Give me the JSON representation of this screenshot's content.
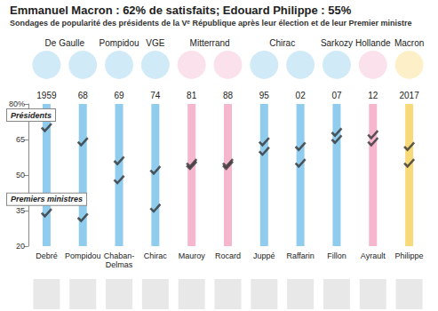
{
  "chart_data": {
    "type": "scatter",
    "title": "Emmanuel Macron : 62% de satisfaits; Edouard Philippe : 55%",
    "subtitle": "Sondages de popularité des présidents de la Vᵉ République après leur élection et de leur Premier ministre",
    "categories": [
      "1959",
      "68",
      "69",
      "74",
      "81",
      "88",
      "95",
      "02",
      "07",
      "12",
      "2017"
    ],
    "presidents": [
      {
        "name": "De Gaulle",
        "years": [
          "1959",
          "68"
        ]
      },
      {
        "name": "Pompidou",
        "years": [
          "69"
        ]
      },
      {
        "name": "VGE",
        "years": [
          "74"
        ]
      },
      {
        "name": "Mitterrand",
        "years": [
          "81",
          "88"
        ]
      },
      {
        "name": "Chirac",
        "years": [
          "95",
          "02"
        ]
      },
      {
        "name": "Sarkozy",
        "years": [
          "07"
        ]
      },
      {
        "name": "Hollande",
        "years": [
          "12"
        ]
      },
      {
        "name": "Macron",
        "years": [
          "2017"
        ]
      }
    ],
    "prime_ministers": [
      "Debré",
      "Pompidou",
      "Chaban-Delmas",
      "Chirac",
      "Mauroy",
      "Rocard",
      "Juppé",
      "Raffarin",
      "Fillon",
      "Ayrault",
      "Philippe"
    ],
    "colors": [
      "#7cc3ea",
      "#7cc3ea",
      "#7cc3ea",
      "#7cc3ea",
      "#f4aac5",
      "#f4aac5",
      "#7cc3ea",
      "#7cc3ea",
      "#7cc3ea",
      "#f4aac5",
      "#f8d463"
    ],
    "series": [
      {
        "name": "Présidents",
        "color": "#333333",
        "marker": "check",
        "values": [
          70,
          64,
          56,
          52,
          54,
          54,
          60,
          55,
          68,
          67,
          62
        ]
      },
      {
        "name": "Premiers ministres",
        "color": "#333333",
        "marker": "check",
        "values": [
          34,
          32,
          48,
          36,
          55,
          55,
          64,
          62,
          65,
          64,
          55
        ]
      }
    ],
    "ylim": [
      20,
      80
    ],
    "yticks": [
      20,
      35,
      50,
      65,
      {
        "value": 80,
        "label": "80%"
      }
    ],
    "grid": false
  }
}
